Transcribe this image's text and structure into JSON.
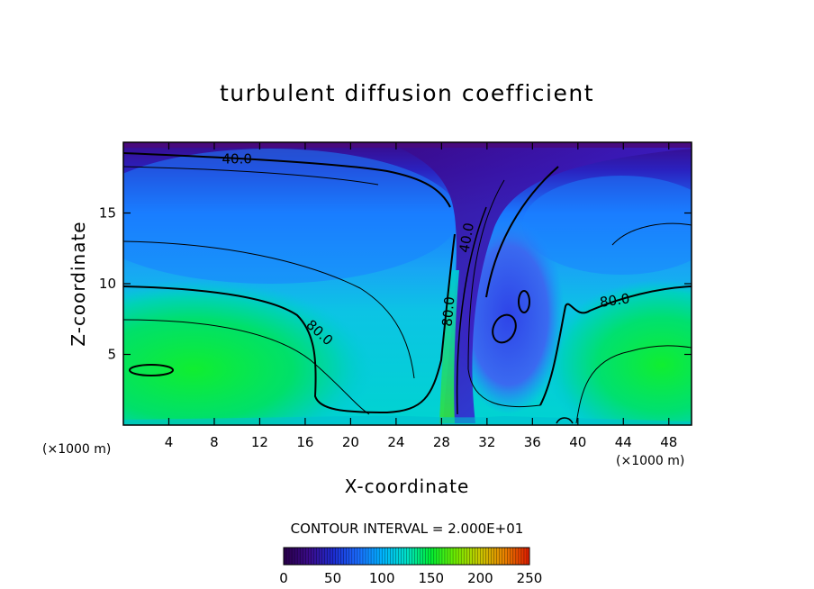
{
  "chart_data": {
    "type": "heatmap",
    "title": "turbulent diffusion coefficient",
    "xlabel": "X-coordinate",
    "ylabel": "Z-coordinate",
    "x_unit": "(×1000 m)",
    "xlim": [
      0,
      50
    ],
    "ylim": [
      0,
      20
    ],
    "xticks": [
      4,
      8,
      12,
      16,
      20,
      24,
      28,
      32,
      36,
      40,
      44,
      48
    ],
    "yticks": [
      5,
      10,
      15
    ],
    "contour_interval_text": "CONTOUR INTERVAL = 2.000E+01",
    "contour_labels": [
      {
        "text": "40.0",
        "x": 10,
        "z": 18.5,
        "rotate": 0
      },
      {
        "text": "80.0",
        "x": 17,
        "z": 6.3,
        "rotate": 42
      },
      {
        "text": "80.0",
        "x": 29,
        "z": 8.0,
        "rotate": -85
      },
      {
        "text": "40.0",
        "x": 30.6,
        "z": 13.2,
        "rotate": -80
      },
      {
        "text": "80.0",
        "x": 43.3,
        "z": 8.5,
        "rotate": -8
      }
    ],
    "colorbar": {
      "ticks": [
        0,
        50,
        100,
        150,
        200,
        250
      ],
      "range": [
        0,
        250
      ],
      "colors": [
        "#2a004e",
        "#3a0b8a",
        "#1c2cd0",
        "#1a6cff",
        "#00b4ff",
        "#00e0c8",
        "#00ee33",
        "#70ee00",
        "#c8c800",
        "#e88400",
        "#e02000"
      ]
    }
  }
}
